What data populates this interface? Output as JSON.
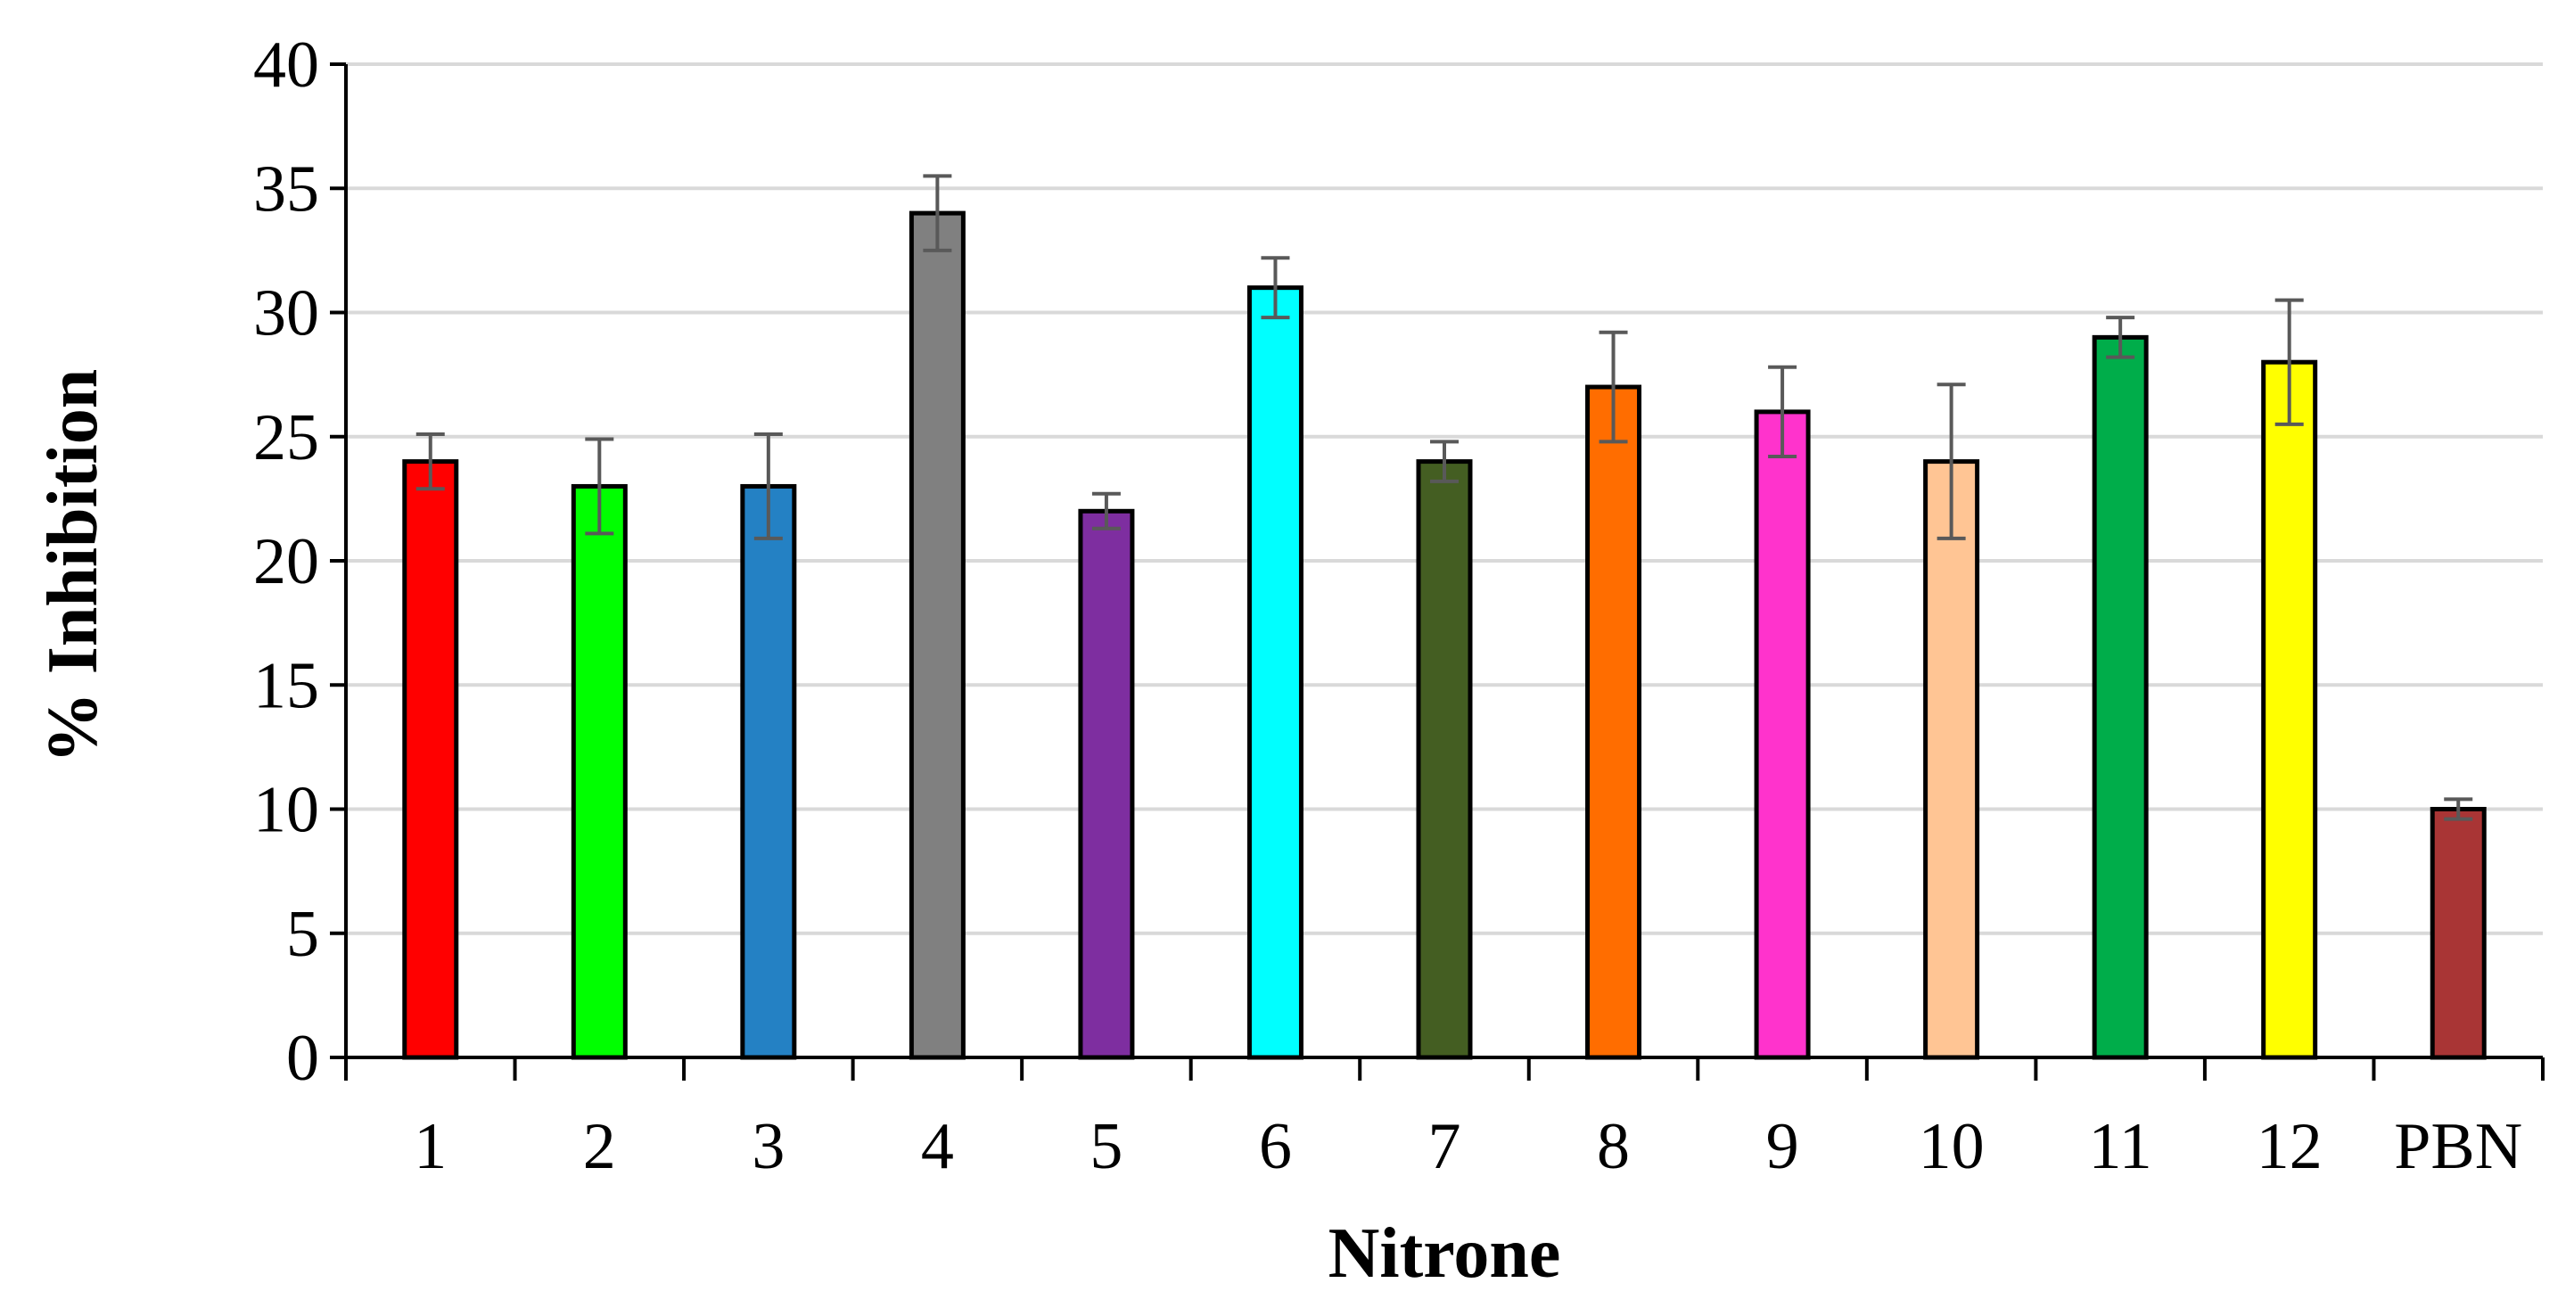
{
  "chart_data": {
    "type": "bar",
    "title": "",
    "xlabel": "Nitrone",
    "ylabel": "% Inhibition",
    "ylim": [
      0,
      40
    ],
    "yticks": [
      0,
      5,
      10,
      15,
      20,
      25,
      30,
      35,
      40
    ],
    "grid": true,
    "legend": "none",
    "categories": [
      "1",
      "2",
      "3",
      "4",
      "5",
      "6",
      "7",
      "8",
      "9",
      "10",
      "11",
      "12",
      "PBN"
    ],
    "values": [
      24,
      23,
      23,
      34,
      22,
      31,
      24,
      27,
      26,
      24,
      29,
      28,
      10
    ],
    "errors": [
      1.1,
      1.9,
      2.1,
      1.5,
      0.7,
      1.2,
      0.8,
      2.2,
      1.8,
      3.1,
      0.8,
      2.5,
      0.4
    ],
    "colors": [
      "#FF0000",
      "#00FF00",
      "#2481C4",
      "#808080",
      "#7E2EA0",
      "#00FFFF",
      "#445E22",
      "#FF6D00",
      "#FF33CC",
      "#FFC594",
      "#00AD4A",
      "#FFFF00",
      "#A93535"
    ]
  },
  "colors": {
    "grid": "#D9D9D9",
    "axis": "#000000",
    "errorbar": "#595959",
    "bar_outline": "#000000"
  }
}
